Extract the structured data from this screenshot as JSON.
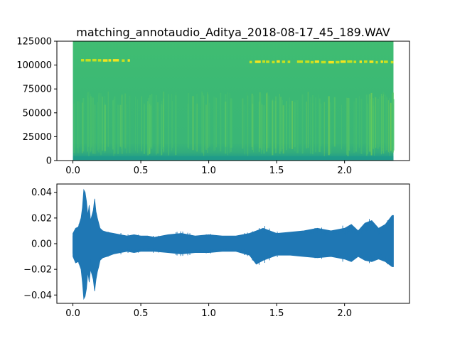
{
  "chart_data": [
    {
      "type": "heatmap",
      "title": "matching_annotaudio_Aditya_2018-08-17_45_189.WAV",
      "xlabel": "",
      "ylabel": "",
      "xlim": [
        -0.118,
        2.478
      ],
      "ylim": [
        0,
        125000
      ],
      "data_x_range": [
        0,
        2.36
      ],
      "x_ticks": [
        0.0,
        0.5,
        1.0,
        1.5,
        2.0
      ],
      "x_tick_labels": [
        "0.0",
        "0.5",
        "1.0",
        "1.5",
        "2.0"
      ],
      "y_ticks": [
        0,
        25000,
        50000,
        75000,
        100000,
        125000
      ],
      "y_tick_labels": [
        "0",
        "25000",
        "50000",
        "75000",
        "100000",
        "125000"
      ],
      "colormap": "viridis",
      "base_color": "#3dba74",
      "low_band_color": "#1f9a8a",
      "tone_color": "#f2e41f",
      "tone_frequency": 103500,
      "tone_segments": [
        [
          0.06,
          0.42
        ],
        [
          1.3,
          1.6
        ],
        [
          1.65,
          2.36
        ]
      ],
      "broadband_energy_frequency_range": [
        15000,
        50000
      ],
      "grid": false
    },
    {
      "type": "line",
      "title": "",
      "xlabel": "",
      "ylabel": "",
      "xlim": [
        -0.118,
        2.478
      ],
      "ylim": [
        -0.0465,
        0.0465
      ],
      "x_ticks": [
        0.0,
        0.5,
        1.0,
        1.5,
        2.0
      ],
      "x_tick_labels": [
        "0.0",
        "0.5",
        "1.0",
        "1.5",
        "2.0"
      ],
      "y_ticks": [
        -0.04,
        -0.02,
        0.0,
        0.02,
        0.04
      ],
      "y_tick_labels": [
        "−0.04",
        "−0.02",
        "0.00",
        "0.02",
        "0.04"
      ],
      "line_color": "#1f77b4",
      "grid": false,
      "series": [
        {
          "x": [
            0,
            0.02,
            0.04,
            0.06,
            0.07,
            0.08,
            0.09,
            0.1,
            0.11,
            0.12,
            0.13,
            0.15,
            0.16,
            0.17,
            0.18,
            0.19,
            0.2,
            0.22,
            0.25,
            0.3,
            0.35,
            0.4,
            0.45,
            0.5,
            0.55,
            0.6,
            0.7,
            0.8,
            0.9,
            1.0,
            1.1,
            1.2,
            1.3,
            1.35,
            1.4,
            1.5,
            1.6,
            1.7,
            1.8,
            1.9,
            2.0,
            2.05,
            2.1,
            2.15,
            2.2,
            2.25,
            2.3,
            2.35,
            2.36
          ],
          "upper": [
            0.008,
            0.012,
            0.013,
            0.02,
            0.028,
            0.042,
            0.04,
            0.033,
            0.022,
            0.03,
            0.018,
            0.026,
            0.035,
            0.025,
            0.02,
            0.016,
            0.012,
            0.01,
            0.009,
            0.008,
            0.007,
            0.006,
            0.007,
            0.006,
            0.006,
            0.005,
            0.007,
            0.008,
            0.006,
            0.007,
            0.006,
            0.006,
            0.008,
            0.01,
            0.012,
            0.008,
            0.009,
            0.01,
            0.012,
            0.01,
            0.012,
            0.015,
            0.01,
            0.016,
            0.018,
            0.012,
            0.015,
            0.022,
            0.022
          ],
          "lower": [
            -0.01,
            -0.015,
            -0.014,
            -0.02,
            -0.03,
            -0.043,
            -0.041,
            -0.035,
            -0.022,
            -0.03,
            -0.02,
            -0.028,
            -0.037,
            -0.028,
            -0.022,
            -0.018,
            -0.013,
            -0.011,
            -0.01,
            -0.008,
            -0.007,
            -0.006,
            -0.007,
            -0.006,
            -0.006,
            -0.006,
            -0.007,
            -0.008,
            -0.007,
            -0.007,
            -0.006,
            -0.006,
            -0.009,
            -0.016,
            -0.013,
            -0.009,
            -0.009,
            -0.01,
            -0.011,
            -0.01,
            -0.012,
            -0.014,
            -0.01,
            -0.013,
            -0.014,
            -0.012,
            -0.014,
            -0.018,
            -0.018
          ]
        }
      ]
    }
  ]
}
